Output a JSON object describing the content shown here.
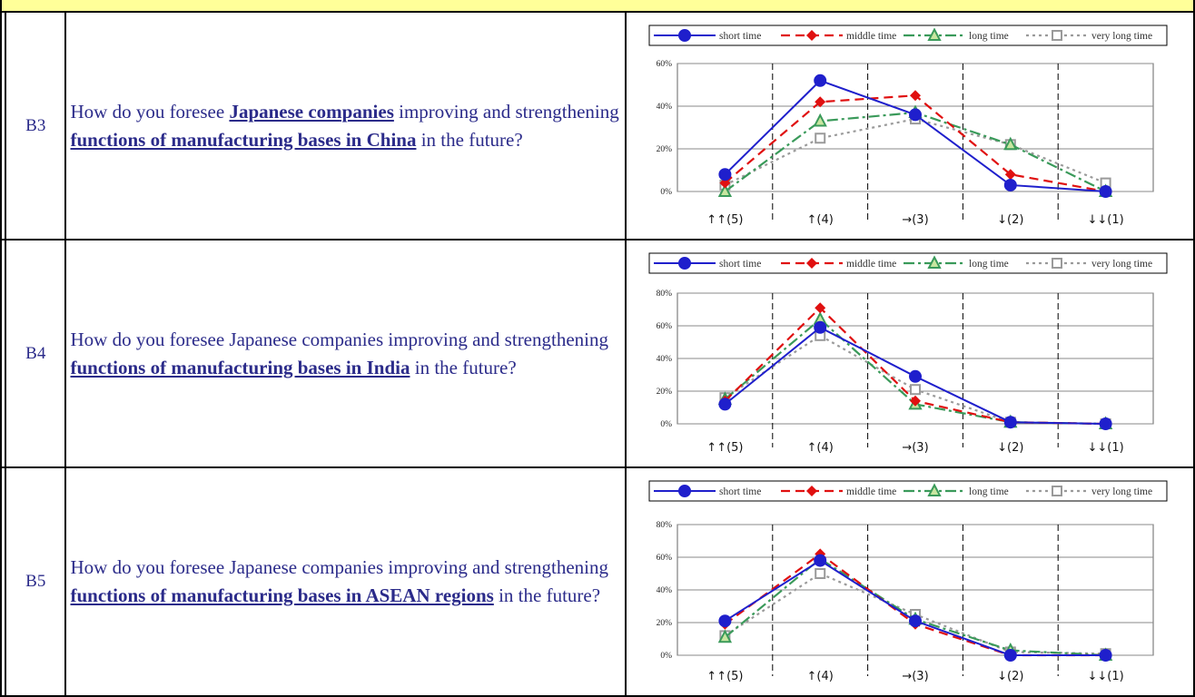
{
  "header": {
    "text": ""
  },
  "rows": [
    {
      "id": "B3",
      "question": {
        "pre": "How do you foresee ",
        "bold1": "Japanese companies",
        "mid": " improving and strengthening ",
        "bold2": "functions of manufacturing bases in China",
        "post": " in the future?"
      }
    },
    {
      "id": "B4",
      "question": {
        "pre": "How do you foresee Japanese companies improving and strengthening ",
        "bold1": "",
        "mid": "",
        "bold2": "functions of manufacturing bases in India",
        "post": " in the future?"
      }
    },
    {
      "id": "B5",
      "question": {
        "pre": "How do you foresee Japanese companies improving and strengthening ",
        "bold1": "",
        "mid": "",
        "bold2": "functions of manufacturing bases in ASEAN regions",
        "post": " in the future?"
      }
    }
  ],
  "legend": [
    "short time",
    "middle time",
    "long time",
    "very long time"
  ],
  "colors": {
    "short": "#1f1fcc",
    "middle": "#e01010",
    "long": "#3a9a5a",
    "vlong": "#9a9a9a",
    "qtext": "#2b2b8a",
    "header": "#ffff99"
  },
  "chart_data": [
    {
      "type": "line",
      "categories": [
        "↑↑(5)",
        "↑(4)",
        "→(3)",
        "↓(2)",
        "↓↓(1)"
      ],
      "ylim": [
        0,
        60
      ],
      "yticks": [
        "0%",
        "20%",
        "40%",
        "60%"
      ],
      "series": [
        {
          "name": "short time",
          "values": [
            8,
            52,
            36,
            3,
            0
          ]
        },
        {
          "name": "middle time",
          "values": [
            4,
            42,
            45,
            8,
            0
          ]
        },
        {
          "name": "long time",
          "values": [
            0,
            33,
            37,
            22,
            0
          ]
        },
        {
          "name": "very long time",
          "values": [
            3,
            25,
            34,
            22,
            4
          ]
        }
      ]
    },
    {
      "type": "line",
      "categories": [
        "↑↑(5)",
        "↑(4)",
        "→(3)",
        "↓(2)",
        "↓↓(1)"
      ],
      "ylim": [
        0,
        80
      ],
      "yticks": [
        "0%",
        "20%",
        "40%",
        "60%",
        "80%"
      ],
      "series": [
        {
          "name": "short time",
          "values": [
            12,
            59,
            29,
            1,
            0
          ]
        },
        {
          "name": "middle time",
          "values": [
            14,
            71,
            14,
            1,
            0
          ]
        },
        {
          "name": "long time",
          "values": [
            15,
            64,
            12,
            1,
            0
          ]
        },
        {
          "name": "very long time",
          "values": [
            16,
            54,
            21,
            1,
            0
          ]
        }
      ]
    },
    {
      "type": "line",
      "categories": [
        "↑↑(5)",
        "↑(4)",
        "→(3)",
        "↓(2)",
        "↓↓(1)"
      ],
      "ylim": [
        0,
        80
      ],
      "yticks": [
        "0%",
        "20%",
        "40%",
        "60%",
        "80%"
      ],
      "series": [
        {
          "name": "short time",
          "values": [
            21,
            58,
            21,
            0,
            0
          ]
        },
        {
          "name": "middle time",
          "values": [
            19,
            62,
            19,
            0,
            0
          ]
        },
        {
          "name": "long time",
          "values": [
            11,
            59,
            22,
            3,
            0
          ]
        },
        {
          "name": "very long time",
          "values": [
            12,
            50,
            25,
            2,
            1
          ]
        }
      ]
    }
  ]
}
